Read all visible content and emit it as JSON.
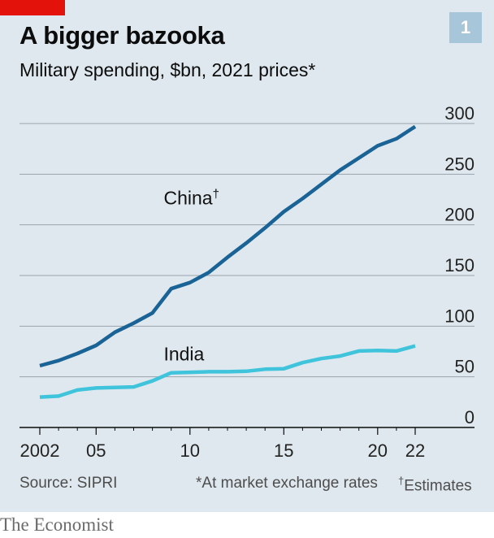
{
  "header": {
    "title": "A bigger bazooka",
    "subtitle": "Military spending, $bn, 2021 prices*",
    "chart_number": "1"
  },
  "footer": {
    "source": "Source: SIPRI",
    "note_market": "*At market exchange rates",
    "note_estimates_mark": "†",
    "note_estimates": "Estimates"
  },
  "brand": {
    "logo": "The Economist",
    "accent_color": "#e3120b"
  },
  "colors": {
    "background": "#dfe8ee",
    "china": "#1a6396",
    "india": "#3fc4dc",
    "gridline": "#9aa4ab",
    "axis": "#0c0c0c"
  },
  "chart_data": {
    "type": "line",
    "title": "A bigger bazooka",
    "subtitle": "Military spending, $bn, 2021 prices*",
    "x": [
      2002,
      2003,
      2004,
      2005,
      2006,
      2007,
      2008,
      2009,
      2010,
      2011,
      2012,
      2013,
      2014,
      2015,
      2016,
      2017,
      2018,
      2019,
      2020,
      2021,
      2022
    ],
    "x_ticks": [
      2002,
      2005,
      2010,
      2015,
      2020,
      2022
    ],
    "x_tick_labels": [
      "2002",
      "05",
      "10",
      "15",
      "20",
      "22"
    ],
    "ylim": [
      0,
      300
    ],
    "y_ticks": [
      0,
      50,
      100,
      150,
      200,
      250,
      300
    ],
    "y_tick_labels": [
      "0",
      "50",
      "100",
      "150",
      "200",
      "250",
      "300"
    ],
    "y_axis_side": "right",
    "grid": true,
    "series": [
      {
        "name": "China",
        "label_mark": "†",
        "color": "#1a6396",
        "values": [
          61,
          66,
          73,
          81,
          94,
          103,
          113,
          137,
          143,
          153,
          168,
          182,
          197,
          213,
          226,
          240,
          254,
          266,
          278,
          285,
          297
        ]
      },
      {
        "name": "India",
        "color": "#3fc4dc",
        "values": [
          30,
          31,
          37,
          39,
          39.5,
          40,
          46,
          54,
          54.5,
          55,
          55,
          55.5,
          57.5,
          58,
          64,
          68,
          70.5,
          75.5,
          76,
          75.5,
          80.5
        ]
      }
    ]
  }
}
